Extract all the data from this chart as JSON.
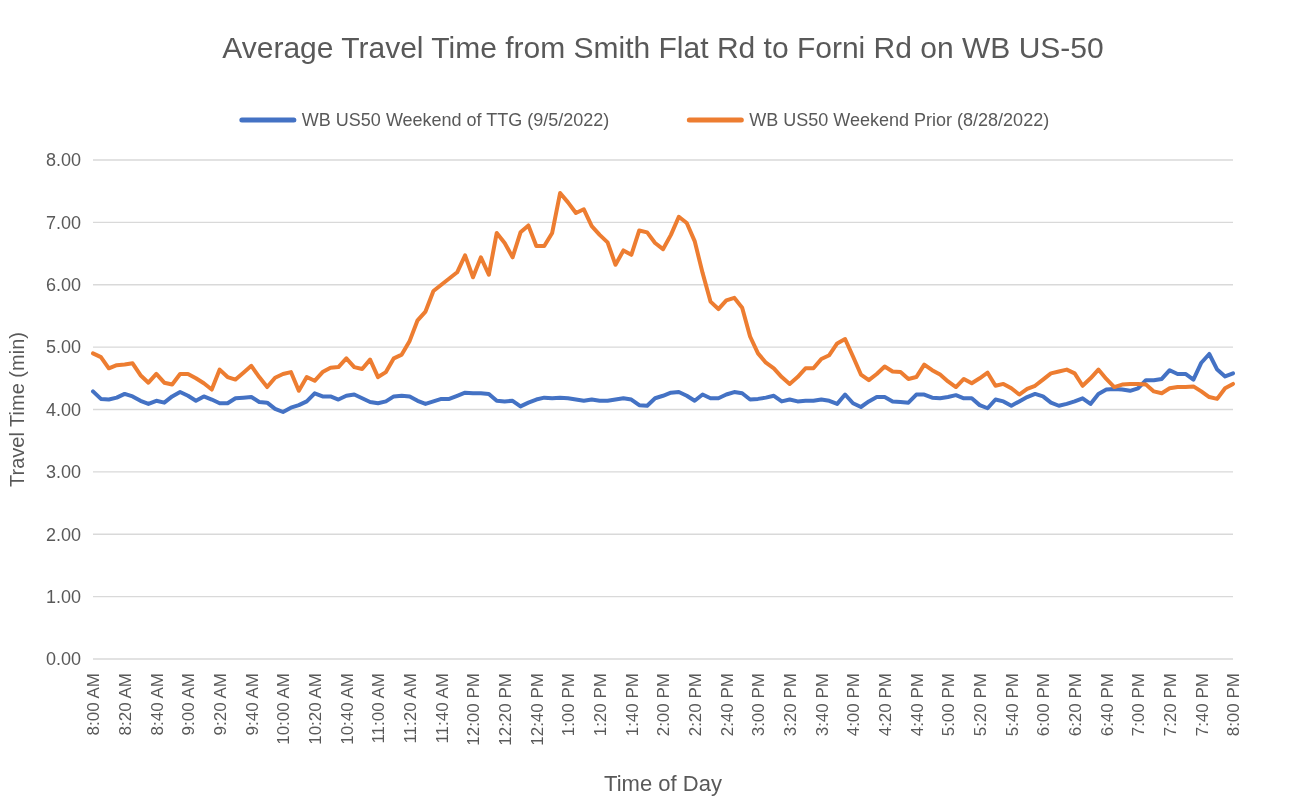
{
  "chart_data": {
    "type": "line",
    "title": "Average Travel Time from Smith Flat Rd to Forni Rd on WB US-50",
    "xlabel": "Time of Day",
    "ylabel": "Travel Time (min)",
    "categories": [
      "8:00 AM",
      null,
      null,
      null,
      "8:20 AM",
      null,
      null,
      null,
      "8:40 AM",
      null,
      null,
      null,
      "9:00 AM",
      null,
      null,
      null,
      "9:20 AM",
      null,
      null,
      null,
      "9:40 AM",
      null,
      null,
      null,
      "10:00 AM",
      null,
      null,
      null,
      "10:20 AM",
      null,
      null,
      null,
      "10:40 AM",
      null,
      null,
      null,
      "11:00 AM",
      null,
      null,
      null,
      "11:20 AM",
      null,
      null,
      null,
      "11:40 AM",
      null,
      null,
      null,
      "12:00 PM",
      null,
      null,
      null,
      "12:20 PM",
      null,
      null,
      null,
      "12:40 PM",
      null,
      null,
      null,
      "1:00 PM",
      null,
      null,
      null,
      "1:20 PM",
      null,
      null,
      null,
      "1:40 PM",
      null,
      null,
      null,
      "2:00 PM",
      null,
      null,
      null,
      "2:20 PM",
      null,
      null,
      null,
      "2:40 PM",
      null,
      null,
      null,
      "3:00 PM",
      null,
      null,
      null,
      "3:20 PM",
      null,
      null,
      null,
      "3:40 PM",
      null,
      null,
      null,
      "4:00 PM",
      null,
      null,
      null,
      "4:20 PM",
      null,
      null,
      null,
      "4:40 PM",
      null,
      null,
      null,
      "5:00 PM",
      null,
      null,
      null,
      "5:20 PM",
      null,
      null,
      null,
      "5:40 PM",
      null,
      null,
      null,
      "6:00 PM",
      null,
      null,
      null,
      "6:20 PM",
      null,
      null,
      null,
      "6:40 PM",
      null,
      null,
      null,
      "7:00 PM",
      null,
      null,
      null,
      "7:20 PM",
      null,
      null,
      null,
      "7:40 PM",
      null,
      null,
      null,
      "8:00 PM"
    ],
    "series": [
      {
        "name": "WB US50 Weekend of TTG (9/5/2022)",
        "color": "#4472c4",
        "values": [
          4.29,
          4.17,
          4.16,
          4.19,
          4.25,
          4.21,
          4.14,
          4.09,
          4.14,
          4.11,
          4.21,
          4.28,
          4.22,
          4.14,
          4.21,
          4.16,
          4.1,
          4.1,
          4.18,
          4.19,
          4.2,
          4.12,
          4.11,
          4.01,
          3.96,
          4.03,
          4.07,
          4.13,
          4.26,
          4.21,
          4.21,
          4.16,
          4.22,
          4.24,
          4.18,
          4.12,
          4.1,
          4.13,
          4.21,
          4.22,
          4.21,
          4.14,
          4.09,
          4.13,
          4.17,
          4.17,
          4.22,
          4.27,
          4.26,
          4.26,
          4.25,
          4.14,
          4.13,
          4.14,
          4.05,
          4.11,
          4.16,
          4.19,
          4.18,
          4.19,
          4.18,
          4.16,
          4.14,
          4.16,
          4.14,
          4.14,
          4.16,
          4.18,
          4.16,
          4.07,
          4.06,
          4.18,
          4.22,
          4.27,
          4.28,
          4.22,
          4.14,
          4.24,
          4.18,
          4.18,
          4.24,
          4.28,
          4.26,
          4.16,
          4.17,
          4.19,
          4.22,
          4.13,
          4.16,
          4.13,
          4.14,
          4.14,
          4.16,
          4.14,
          4.09,
          4.24,
          4.1,
          4.04,
          4.13,
          4.2,
          4.2,
          4.13,
          4.12,
          4.11,
          4.24,
          4.24,
          4.19,
          4.18,
          4.2,
          4.23,
          4.18,
          4.18,
          4.07,
          4.02,
          4.16,
          4.13,
          4.06,
          4.13,
          4.2,
          4.25,
          4.21,
          4.11,
          4.06,
          4.09,
          4.13,
          4.18,
          4.09,
          4.25,
          4.32,
          4.33,
          4.32,
          4.3,
          4.34,
          4.47,
          4.47,
          4.49,
          4.63,
          4.57,
          4.57,
          4.48,
          4.75,
          4.89,
          4.64,
          4.53,
          4.58
        ]
      },
      {
        "name": "WB US50 Weekend Prior (8/28/2022)",
        "color": "#ed7d31",
        "values": [
          4.9,
          4.84,
          4.66,
          4.71,
          4.72,
          4.74,
          4.55,
          4.43,
          4.57,
          4.43,
          4.4,
          4.57,
          4.57,
          4.5,
          4.42,
          4.32,
          4.64,
          4.52,
          4.48,
          4.59,
          4.7,
          4.52,
          4.36,
          4.51,
          4.57,
          4.6,
          4.3,
          4.52,
          4.46,
          4.6,
          4.67,
          4.68,
          4.82,
          4.68,
          4.65,
          4.8,
          4.52,
          4.6,
          4.82,
          4.88,
          5.1,
          5.43,
          5.57,
          5.9,
          6.0,
          6.1,
          6.2,
          6.47,
          6.12,
          6.44,
          6.16,
          6.83,
          6.67,
          6.44,
          6.84,
          6.95,
          6.62,
          6.62,
          6.83,
          7.47,
          7.32,
          7.15,
          7.21,
          6.94,
          6.8,
          6.68,
          6.32,
          6.55,
          6.48,
          6.87,
          6.84,
          6.67,
          6.57,
          6.8,
          7.09,
          6.99,
          6.7,
          6.19,
          5.73,
          5.61,
          5.75,
          5.79,
          5.63,
          5.17,
          4.9,
          4.75,
          4.66,
          4.52,
          4.41,
          4.52,
          4.66,
          4.66,
          4.81,
          4.87,
          5.06,
          5.13,
          4.85,
          4.56,
          4.47,
          4.57,
          4.69,
          4.61,
          4.6,
          4.49,
          4.52,
          4.72,
          4.63,
          4.56,
          4.45,
          4.36,
          4.49,
          4.42,
          4.5,
          4.59,
          4.38,
          4.41,
          4.34,
          4.24,
          4.33,
          4.38,
          4.48,
          4.58,
          4.61,
          4.64,
          4.58,
          4.38,
          4.5,
          4.64,
          4.49,
          4.36,
          4.4,
          4.41,
          4.41,
          4.4,
          4.29,
          4.26,
          4.34,
          4.36,
          4.36,
          4.37,
          4.29,
          4.2,
          4.17,
          4.34,
          4.41
        ]
      }
    ],
    "ylim": [
      0,
      8
    ],
    "yticks": [
      {
        "value": 0,
        "label": "0.00"
      },
      {
        "value": 1,
        "label": "1.00"
      },
      {
        "value": 2,
        "label": "2.00"
      },
      {
        "value": 3,
        "label": "3.00"
      },
      {
        "value": 4,
        "label": "4.00"
      },
      {
        "value": 5,
        "label": "5.00"
      },
      {
        "value": 6,
        "label": "6.00"
      },
      {
        "value": 7,
        "label": "7.00"
      },
      {
        "value": 8,
        "label": "8.00"
      }
    ],
    "grid": "y",
    "legend": "top",
    "marker": "none",
    "line_style": "solid"
  }
}
